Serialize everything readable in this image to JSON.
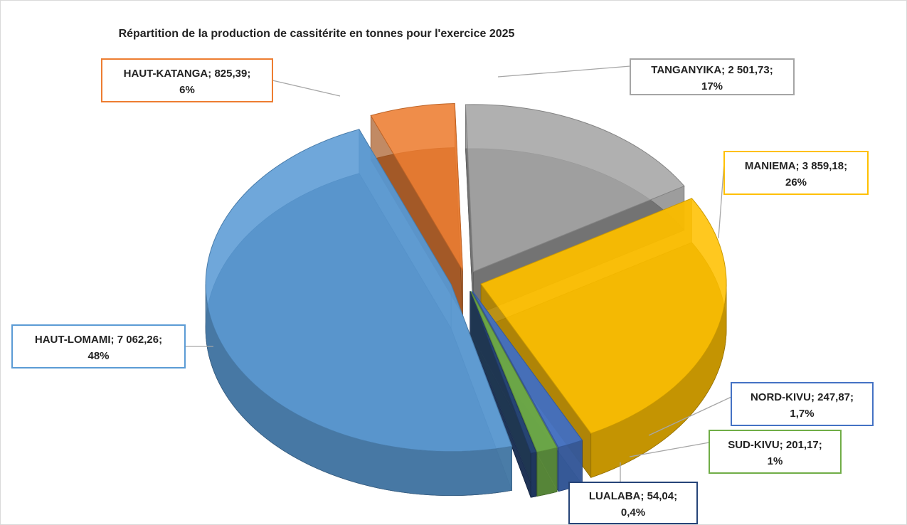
{
  "chart_data": {
    "type": "pie3d",
    "title": "Répartition de la production de cassitérite en tonnes pour l'exercice 2025",
    "categories": [
      "HAUT-KATANGA",
      "TANGANYIKA",
      "MANIEMA",
      "NORD-KIVU",
      "SUD-KIVU",
      "LUALABA",
      "HAUT-LOMAMI"
    ],
    "values": [
      825.39,
      2501.73,
      3859.18,
      247.87,
      201.17,
      54.04,
      7062.26
    ],
    "value_labels": [
      "825,39",
      "2 501,73",
      "3 859,18",
      "247,87",
      "201,17",
      "54,04",
      "7 062,26"
    ],
    "percent_labels": [
      "6%",
      "17%",
      "26%",
      "1,7%",
      "1%",
      "0,4%",
      "48%"
    ],
    "colors": [
      "#ed7d31",
      "#a5a5a5",
      "#ffc000",
      "#4472c4",
      "#70ad47",
      "#264478",
      "#5b9bd5"
    ]
  }
}
